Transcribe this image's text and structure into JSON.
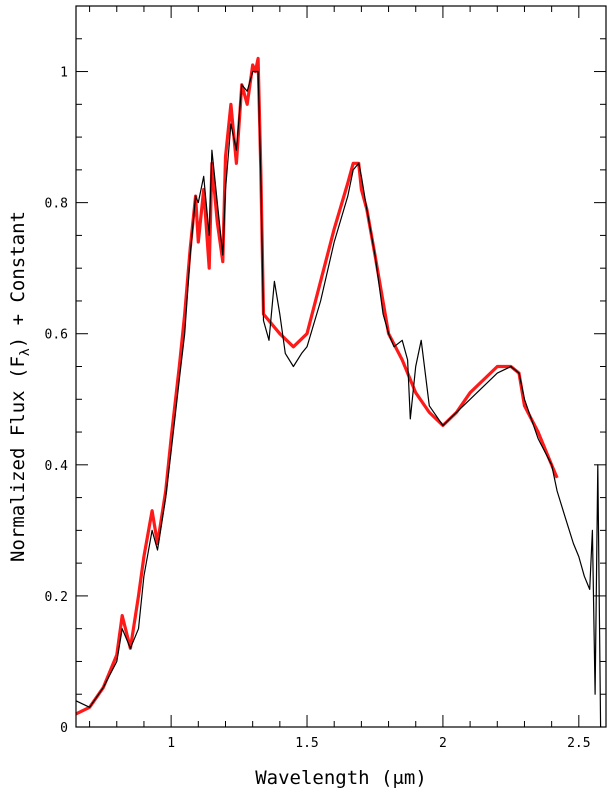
{
  "chart_data": {
    "type": "line",
    "title": "",
    "xlabel": "Wavelength (μm)",
    "ylabel_parts": {
      "pre": "Normalized Flux (F",
      "sub": "λ",
      "post": ") + Constant"
    },
    "xlim": [
      0.65,
      2.6
    ],
    "ylim": [
      0,
      1.1
    ],
    "x_ticks": [
      {
        "value": 1.0,
        "label": "1"
      },
      {
        "value": 1.5,
        "label": "1.5"
      },
      {
        "value": 2.0,
        "label": "2"
      },
      {
        "value": 2.5,
        "label": "2.5"
      }
    ],
    "y_ticks": [
      {
        "value": 0.0,
        "label": "0"
      },
      {
        "value": 0.2,
        "label": "0.2"
      },
      {
        "value": 0.4,
        "label": "0.4"
      },
      {
        "value": 0.6,
        "label": "0.6"
      },
      {
        "value": 0.8,
        "label": "0.8"
      },
      {
        "value": 1.0,
        "label": "1"
      }
    ],
    "x_minor_step": 0.1,
    "y_minor_step": 0.05,
    "grid": false,
    "series": [
      {
        "color": "#ff1a1a",
        "x": [
          0.65,
          0.7,
          0.75,
          0.8,
          0.82,
          0.85,
          0.88,
          0.9,
          0.93,
          0.95,
          0.98,
          1.0,
          1.03,
          1.05,
          1.07,
          1.09,
          1.1,
          1.12,
          1.14,
          1.15,
          1.17,
          1.19,
          1.2,
          1.22,
          1.24,
          1.26,
          1.28,
          1.3,
          1.31,
          1.32,
          1.33,
          1.34,
          1.4,
          1.45,
          1.5,
          1.55,
          1.6,
          1.65,
          1.67,
          1.69,
          1.7,
          1.72,
          1.75,
          1.8,
          1.85,
          1.9,
          1.95,
          2.0,
          2.05,
          2.1,
          2.15,
          2.2,
          2.25,
          2.28,
          2.3,
          2.35,
          2.4,
          2.42
        ],
        "y": [
          0.02,
          0.03,
          0.06,
          0.11,
          0.17,
          0.12,
          0.2,
          0.26,
          0.33,
          0.28,
          0.36,
          0.44,
          0.55,
          0.63,
          0.73,
          0.81,
          0.74,
          0.82,
          0.7,
          0.86,
          0.77,
          0.71,
          0.87,
          0.95,
          0.86,
          0.98,
          0.95,
          1.01,
          1.0,
          1.02,
          0.85,
          0.63,
          0.6,
          0.58,
          0.6,
          0.68,
          0.76,
          0.83,
          0.86,
          0.86,
          0.82,
          0.79,
          0.72,
          0.6,
          0.56,
          0.51,
          0.48,
          0.46,
          0.48,
          0.51,
          0.53,
          0.55,
          0.55,
          0.54,
          0.49,
          0.45,
          0.4,
          0.38
        ]
      },
      {
        "color": "#000000",
        "x": [
          0.65,
          0.7,
          0.75,
          0.8,
          0.82,
          0.85,
          0.88,
          0.9,
          0.93,
          0.95,
          0.98,
          1.0,
          1.03,
          1.05,
          1.07,
          1.09,
          1.1,
          1.12,
          1.14,
          1.15,
          1.17,
          1.19,
          1.2,
          1.22,
          1.24,
          1.26,
          1.28,
          1.3,
          1.31,
          1.32,
          1.33,
          1.34,
          1.36,
          1.38,
          1.4,
          1.42,
          1.45,
          1.48,
          1.5,
          1.55,
          1.6,
          1.65,
          1.67,
          1.69,
          1.7,
          1.72,
          1.75,
          1.78,
          1.8,
          1.82,
          1.85,
          1.87,
          1.88,
          1.9,
          1.92,
          1.95,
          2.0,
          2.05,
          2.1,
          2.15,
          2.2,
          2.25,
          2.28,
          2.3,
          2.35,
          2.4,
          2.42,
          2.45,
          2.48,
          2.5,
          2.52,
          2.54,
          2.55,
          2.56,
          2.57,
          2.58
        ],
        "y": [
          0.04,
          0.03,
          0.06,
          0.1,
          0.15,
          0.12,
          0.15,
          0.23,
          0.3,
          0.27,
          0.35,
          0.42,
          0.53,
          0.6,
          0.72,
          0.81,
          0.8,
          0.84,
          0.75,
          0.88,
          0.8,
          0.72,
          0.82,
          0.92,
          0.88,
          0.98,
          0.97,
          1.0,
          1.0,
          1.0,
          0.84,
          0.62,
          0.59,
          0.68,
          0.63,
          0.57,
          0.55,
          0.57,
          0.58,
          0.65,
          0.74,
          0.81,
          0.85,
          0.86,
          0.84,
          0.79,
          0.72,
          0.63,
          0.6,
          0.58,
          0.59,
          0.56,
          0.47,
          0.55,
          0.59,
          0.49,
          0.46,
          0.48,
          0.5,
          0.52,
          0.54,
          0.55,
          0.54,
          0.5,
          0.44,
          0.4,
          0.36,
          0.32,
          0.28,
          0.26,
          0.23,
          0.21,
          0.3,
          0.05,
          0.4,
          0.0
        ]
      }
    ]
  }
}
